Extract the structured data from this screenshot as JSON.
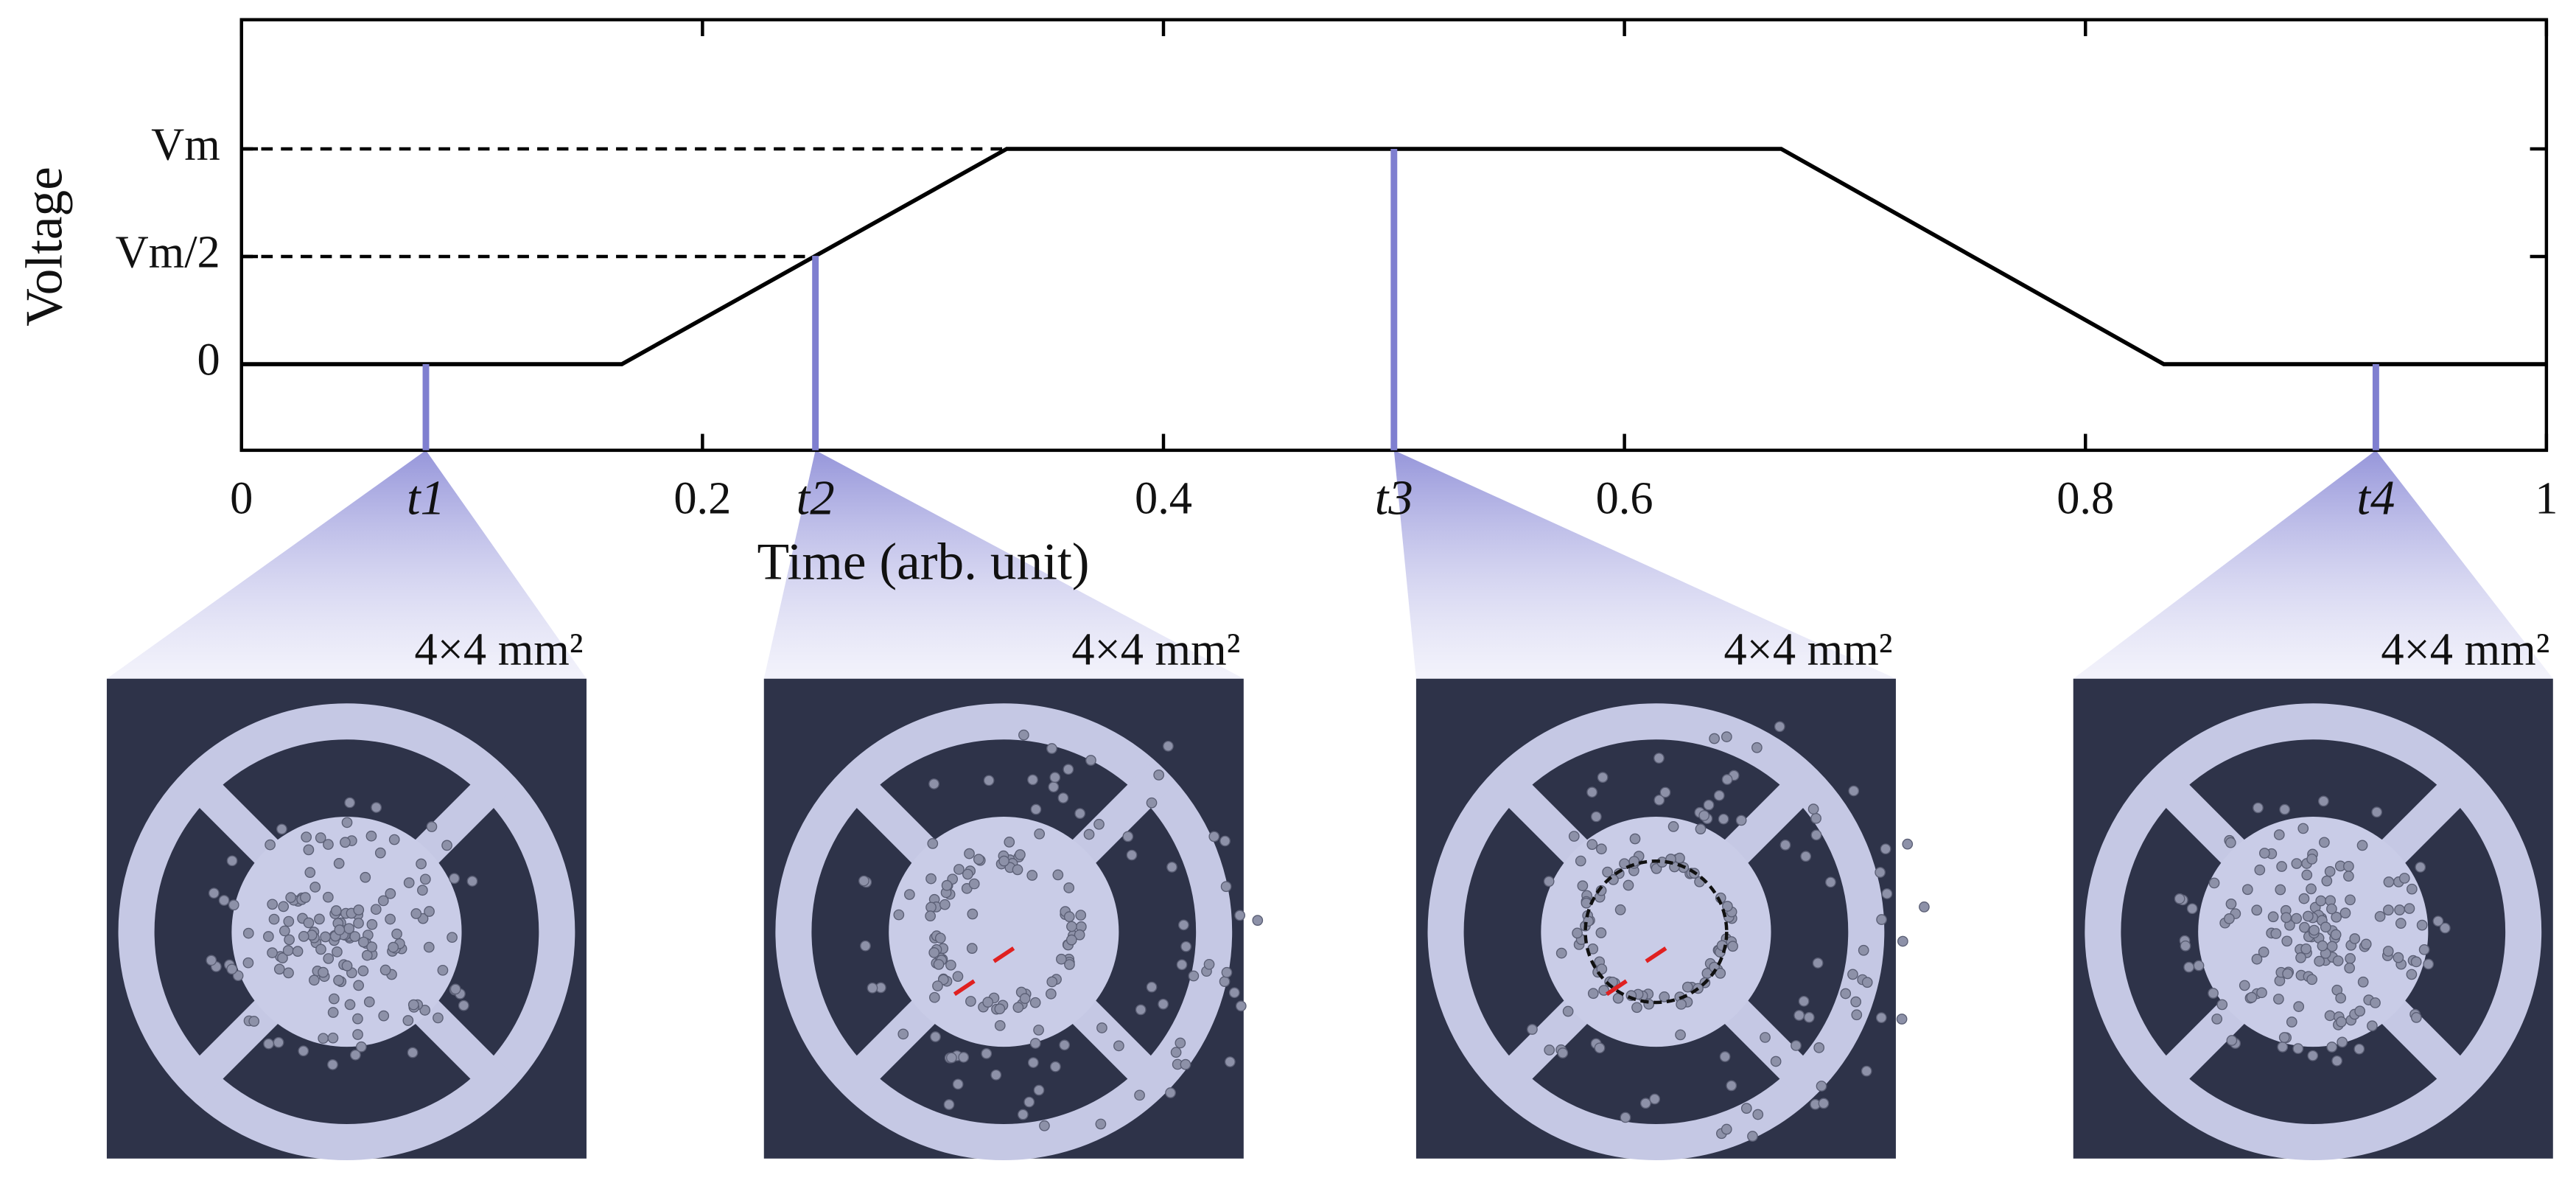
{
  "chart_data": {
    "type": "line",
    "x_label": "Time (arb. unit)",
    "y_label": "Voltage",
    "x": [
      0,
      0.165,
      0.332,
      0.668,
      0.834,
      1
    ],
    "values": [
      0,
      0,
      1,
      1,
      0,
      0
    ],
    "color": "#000000",
    "xlim": [
      0,
      1
    ],
    "xticks": [
      0,
      0.2,
      0.4,
      0.6,
      0.8,
      1
    ],
    "ylim": [
      -0.4,
      1.6
    ],
    "yticks": [
      0,
      {
        "value": 0.5,
        "label": "Vm/2"
      },
      {
        "value": 1,
        "label": "Vm"
      }
    ],
    "grid": false,
    "marker_color": "#7f7fd0",
    "annotations": [
      {
        "label": "t1",
        "x": 0.08,
        "panel_label": "4×4 mm²"
      },
      {
        "label": "t2",
        "x": 0.249,
        "panel_label": "4×4 mm²"
      },
      {
        "label": "t3",
        "x": 0.5,
        "panel_label": "4×4 mm²"
      },
      {
        "label": "t4",
        "x": 0.926,
        "panel_label": "4×4 mm²"
      }
    ]
  }
}
